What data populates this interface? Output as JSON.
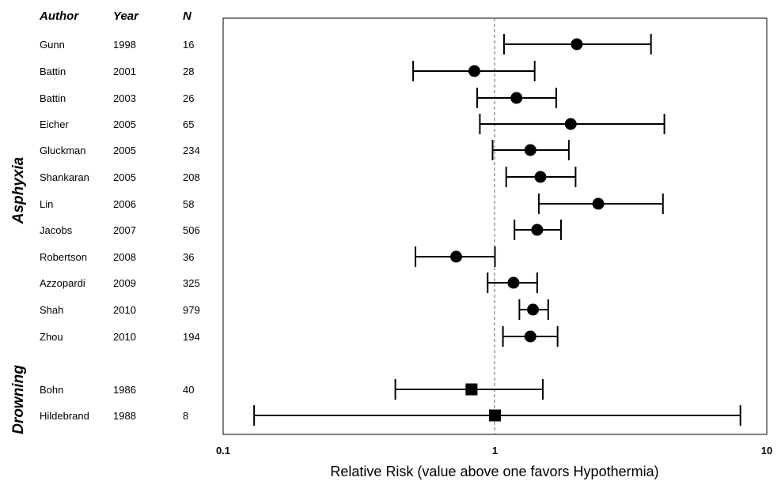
{
  "chart_data": {
    "type": "forest",
    "x_scale": "log",
    "xlim": [
      0.1,
      10
    ],
    "xticks": [
      "0.1",
      "1",
      "10"
    ],
    "reference_line": 1,
    "xlabel": "Relative Risk (value above one favors Hypothermia)",
    "columns": [
      "Author",
      "Year",
      "N"
    ],
    "groups": [
      {
        "name": "Asphyxia",
        "marker": "circle",
        "studies": [
          {
            "author": "Gunn",
            "year": "1998",
            "n": "16",
            "rr": 2.0,
            "lo": 1.08,
            "hi": 3.75
          },
          {
            "author": "Battin",
            "year": "2001",
            "n": "28",
            "rr": 0.84,
            "lo": 0.5,
            "hi": 1.4
          },
          {
            "author": "Battin",
            "year": "2003",
            "n": "26",
            "rr": 1.2,
            "lo": 0.86,
            "hi": 1.68
          },
          {
            "author": "Eicher",
            "year": "2005",
            "n": "65",
            "rr": 1.9,
            "lo": 0.88,
            "hi": 4.2
          },
          {
            "author": "Gluckman",
            "year": "2005",
            "n": "234",
            "rr": 1.35,
            "lo": 0.98,
            "hi": 1.87
          },
          {
            "author": "Shankaran",
            "year": "2005",
            "n": "208",
            "rr": 1.47,
            "lo": 1.1,
            "hi": 1.98
          },
          {
            "author": "Lin",
            "year": "2006",
            "n": "58",
            "rr": 2.4,
            "lo": 1.45,
            "hi": 4.15
          },
          {
            "author": "Jacobs",
            "year": "2007",
            "n": "506",
            "rr": 1.43,
            "lo": 1.18,
            "hi": 1.75
          },
          {
            "author": "Robertson",
            "year": "2008",
            "n": "36",
            "rr": 0.72,
            "lo": 0.51,
            "hi": 1.0
          },
          {
            "author": "Azzopardi",
            "year": "2009",
            "n": "325",
            "rr": 1.17,
            "lo": 0.94,
            "hi": 1.43
          },
          {
            "author": "Shah",
            "year": "2010",
            "n": "979",
            "rr": 1.38,
            "lo": 1.23,
            "hi": 1.57
          },
          {
            "author": "Zhou",
            "year": "2010",
            "n": "194",
            "rr": 1.35,
            "lo": 1.07,
            "hi": 1.7
          }
        ]
      },
      {
        "name": "Drowning",
        "marker": "square",
        "studies": [
          {
            "author": "Bohn",
            "year": "1986",
            "n": "40",
            "rr": 0.82,
            "lo": 0.43,
            "hi": 1.5
          },
          {
            "author": "Hildebrand",
            "year": "1988",
            "n": "8",
            "rr": 1.0,
            "lo": 0.13,
            "hi": 8.0
          }
        ]
      }
    ]
  }
}
